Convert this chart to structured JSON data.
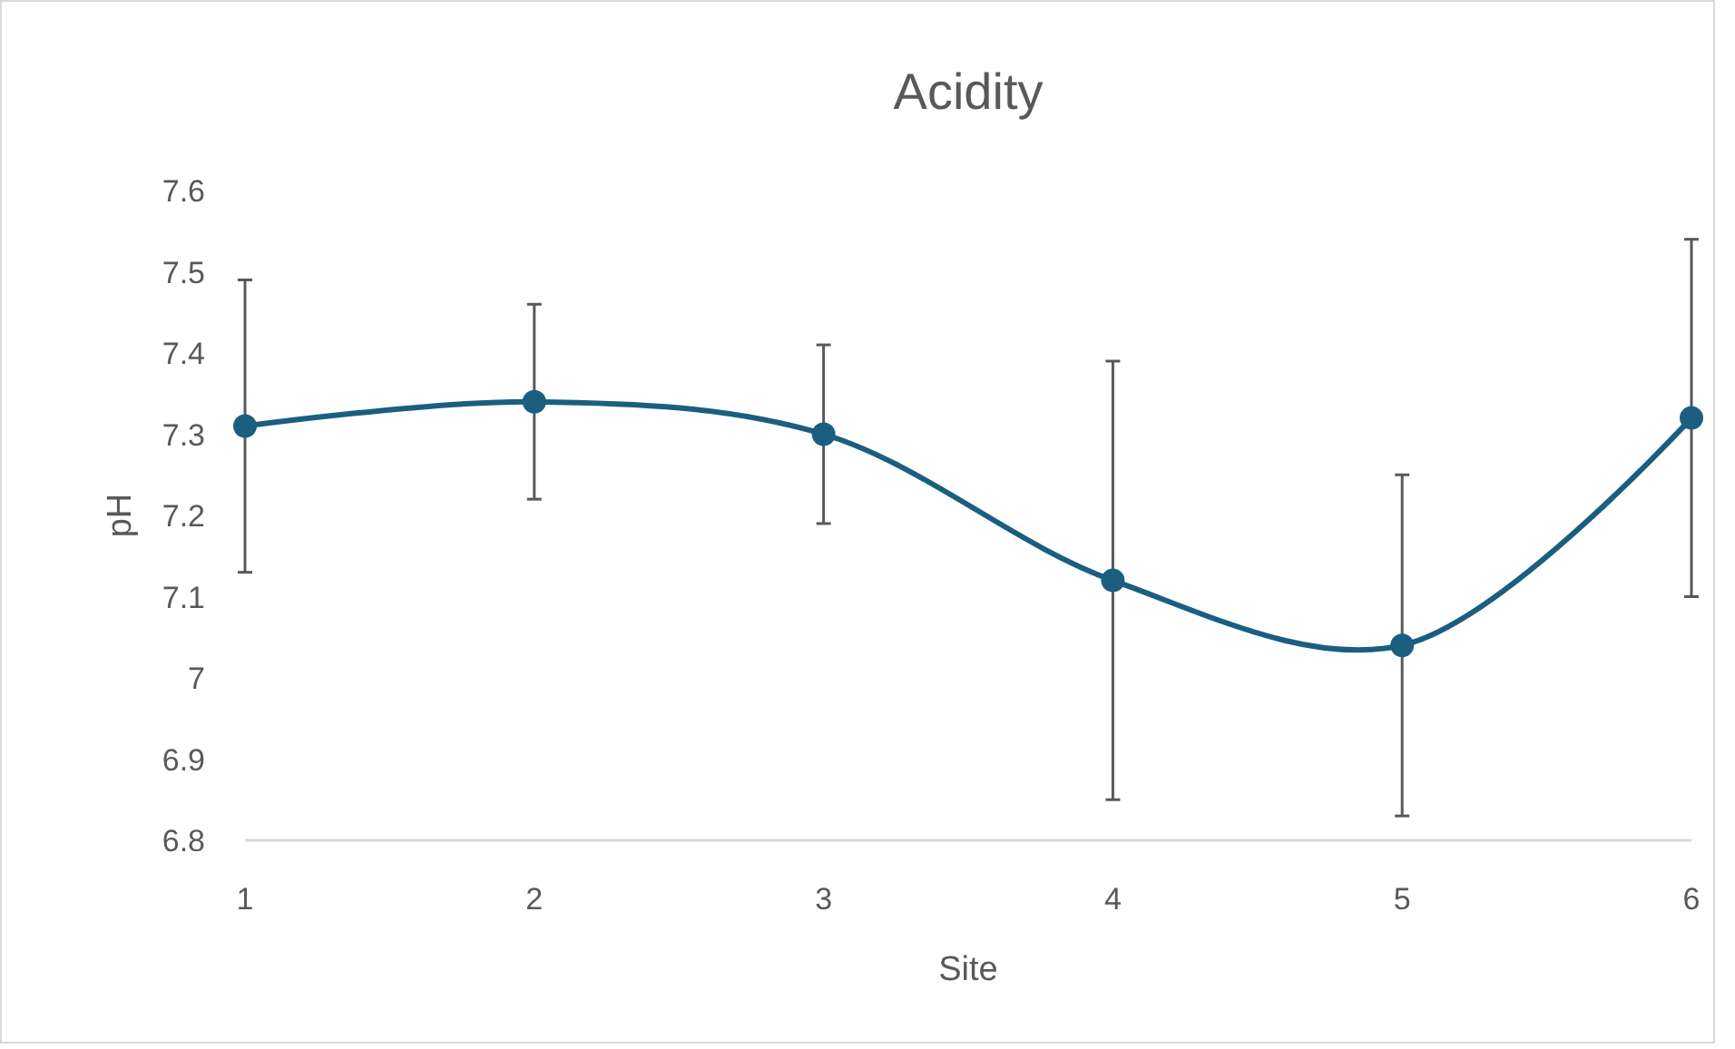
{
  "chart_data": {
    "type": "line",
    "title": "Acidity",
    "xlabel": "Site",
    "ylabel": "pH",
    "x": [
      1,
      2,
      3,
      4,
      5,
      6
    ],
    "series": [
      {
        "color": "#1b5e80",
        "values": [
          7.31,
          7.34,
          7.3,
          7.12,
          7.04,
          7.32
        ],
        "errors": [
          0.18,
          0.12,
          0.11,
          0.27,
          0.21,
          0.22
        ]
      }
    ],
    "xlim": [
      1,
      6
    ],
    "xticks": [
      1,
      2,
      3,
      4,
      5,
      6
    ],
    "ylim": [
      6.8,
      7.6
    ],
    "yticks": [
      6.8,
      6.9,
      7,
      7.1,
      7.2,
      7.3,
      7.4,
      7.5,
      7.6
    ],
    "grid": false,
    "marker": "circle",
    "line_style": "solid"
  }
}
